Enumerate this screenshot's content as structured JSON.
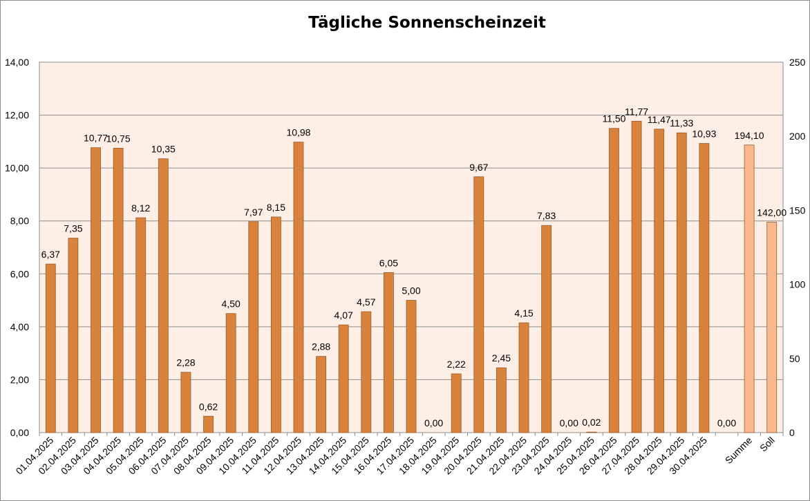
{
  "chart_data": {
    "type": "bar",
    "title": "Tägliche Sonnenscheinzeit",
    "categories": [
      "01.04.2025",
      "02.04.2025",
      "03.04.2025",
      "04.04.2025",
      "05.04.2025",
      "06.04.2025",
      "07.04.2025",
      "08.04.2025",
      "09.04.2025",
      "10.04.2025",
      "11.04.2025",
      "12.04.2025",
      "13.04.2025",
      "14.04.2025",
      "15.04.2025",
      "16.04.2025",
      "17.04.2025",
      "18.04.2025",
      "19.04.2025",
      "20.04.2025",
      "21.04.2025",
      "22.04.2025",
      "23.04.2025",
      "24.04.2025",
      "25.04.2025",
      "26.04.2025",
      "27.04.2025",
      "28.04.2025",
      "29.04.2025",
      "30.04.2025",
      "",
      "Summe",
      "Soll"
    ],
    "series": [
      {
        "axis": "left",
        "color": "#d8823c",
        "values": [
          6.37,
          7.35,
          10.77,
          10.75,
          8.12,
          10.35,
          2.28,
          0.62,
          4.5,
          7.97,
          8.15,
          10.98,
          2.88,
          4.07,
          4.57,
          6.05,
          5.0,
          0.0,
          2.22,
          9.67,
          2.45,
          4.15,
          7.83,
          0.0,
          0.02,
          11.5,
          11.77,
          11.47,
          11.33,
          10.93,
          0.0,
          null,
          null
        ],
        "labels": [
          "6,37",
          "7,35",
          "10,77",
          "10,75",
          "8,12",
          "10,35",
          "2,28",
          "0,62",
          "4,50",
          "7,97",
          "8,15",
          "10,98",
          "2,88",
          "4,07",
          "4,57",
          "6,05",
          "5,00",
          "0,00",
          "2,22",
          "9,67",
          "2,45",
          "4,15",
          "7,83",
          "0,00",
          "0,02",
          "11,50",
          "11,77",
          "11,47",
          "11,33",
          "10,93",
          "0,00",
          "",
          ""
        ]
      },
      {
        "axis": "right",
        "color": "#f9b98f",
        "values": [
          null,
          null,
          null,
          null,
          null,
          null,
          null,
          null,
          null,
          null,
          null,
          null,
          null,
          null,
          null,
          null,
          null,
          null,
          null,
          null,
          null,
          null,
          null,
          null,
          null,
          null,
          null,
          null,
          null,
          null,
          null,
          194.1,
          142.0
        ],
        "labels": [
          "",
          "",
          "",
          "",
          "",
          "",
          "",
          "",
          "",
          "",
          "",
          "",
          "",
          "",
          "",
          "",
          "",
          "",
          "",
          "",
          "",
          "",
          "",
          "",
          "",
          "",
          "",
          "",
          "",
          "",
          "",
          "194,10",
          "142,00"
        ]
      }
    ],
    "ylim": [
      0,
      14
    ],
    "y_ticks": [
      "0,00",
      "2,00",
      "4,00",
      "6,00",
      "8,00",
      "10,00",
      "12,00",
      "14,00"
    ],
    "y2lim": [
      0,
      250
    ],
    "y2_ticks": [
      "0",
      "50",
      "100",
      "150",
      "200",
      "250"
    ],
    "grid": true,
    "plot_background": "#fdeee6",
    "legend": "none"
  }
}
